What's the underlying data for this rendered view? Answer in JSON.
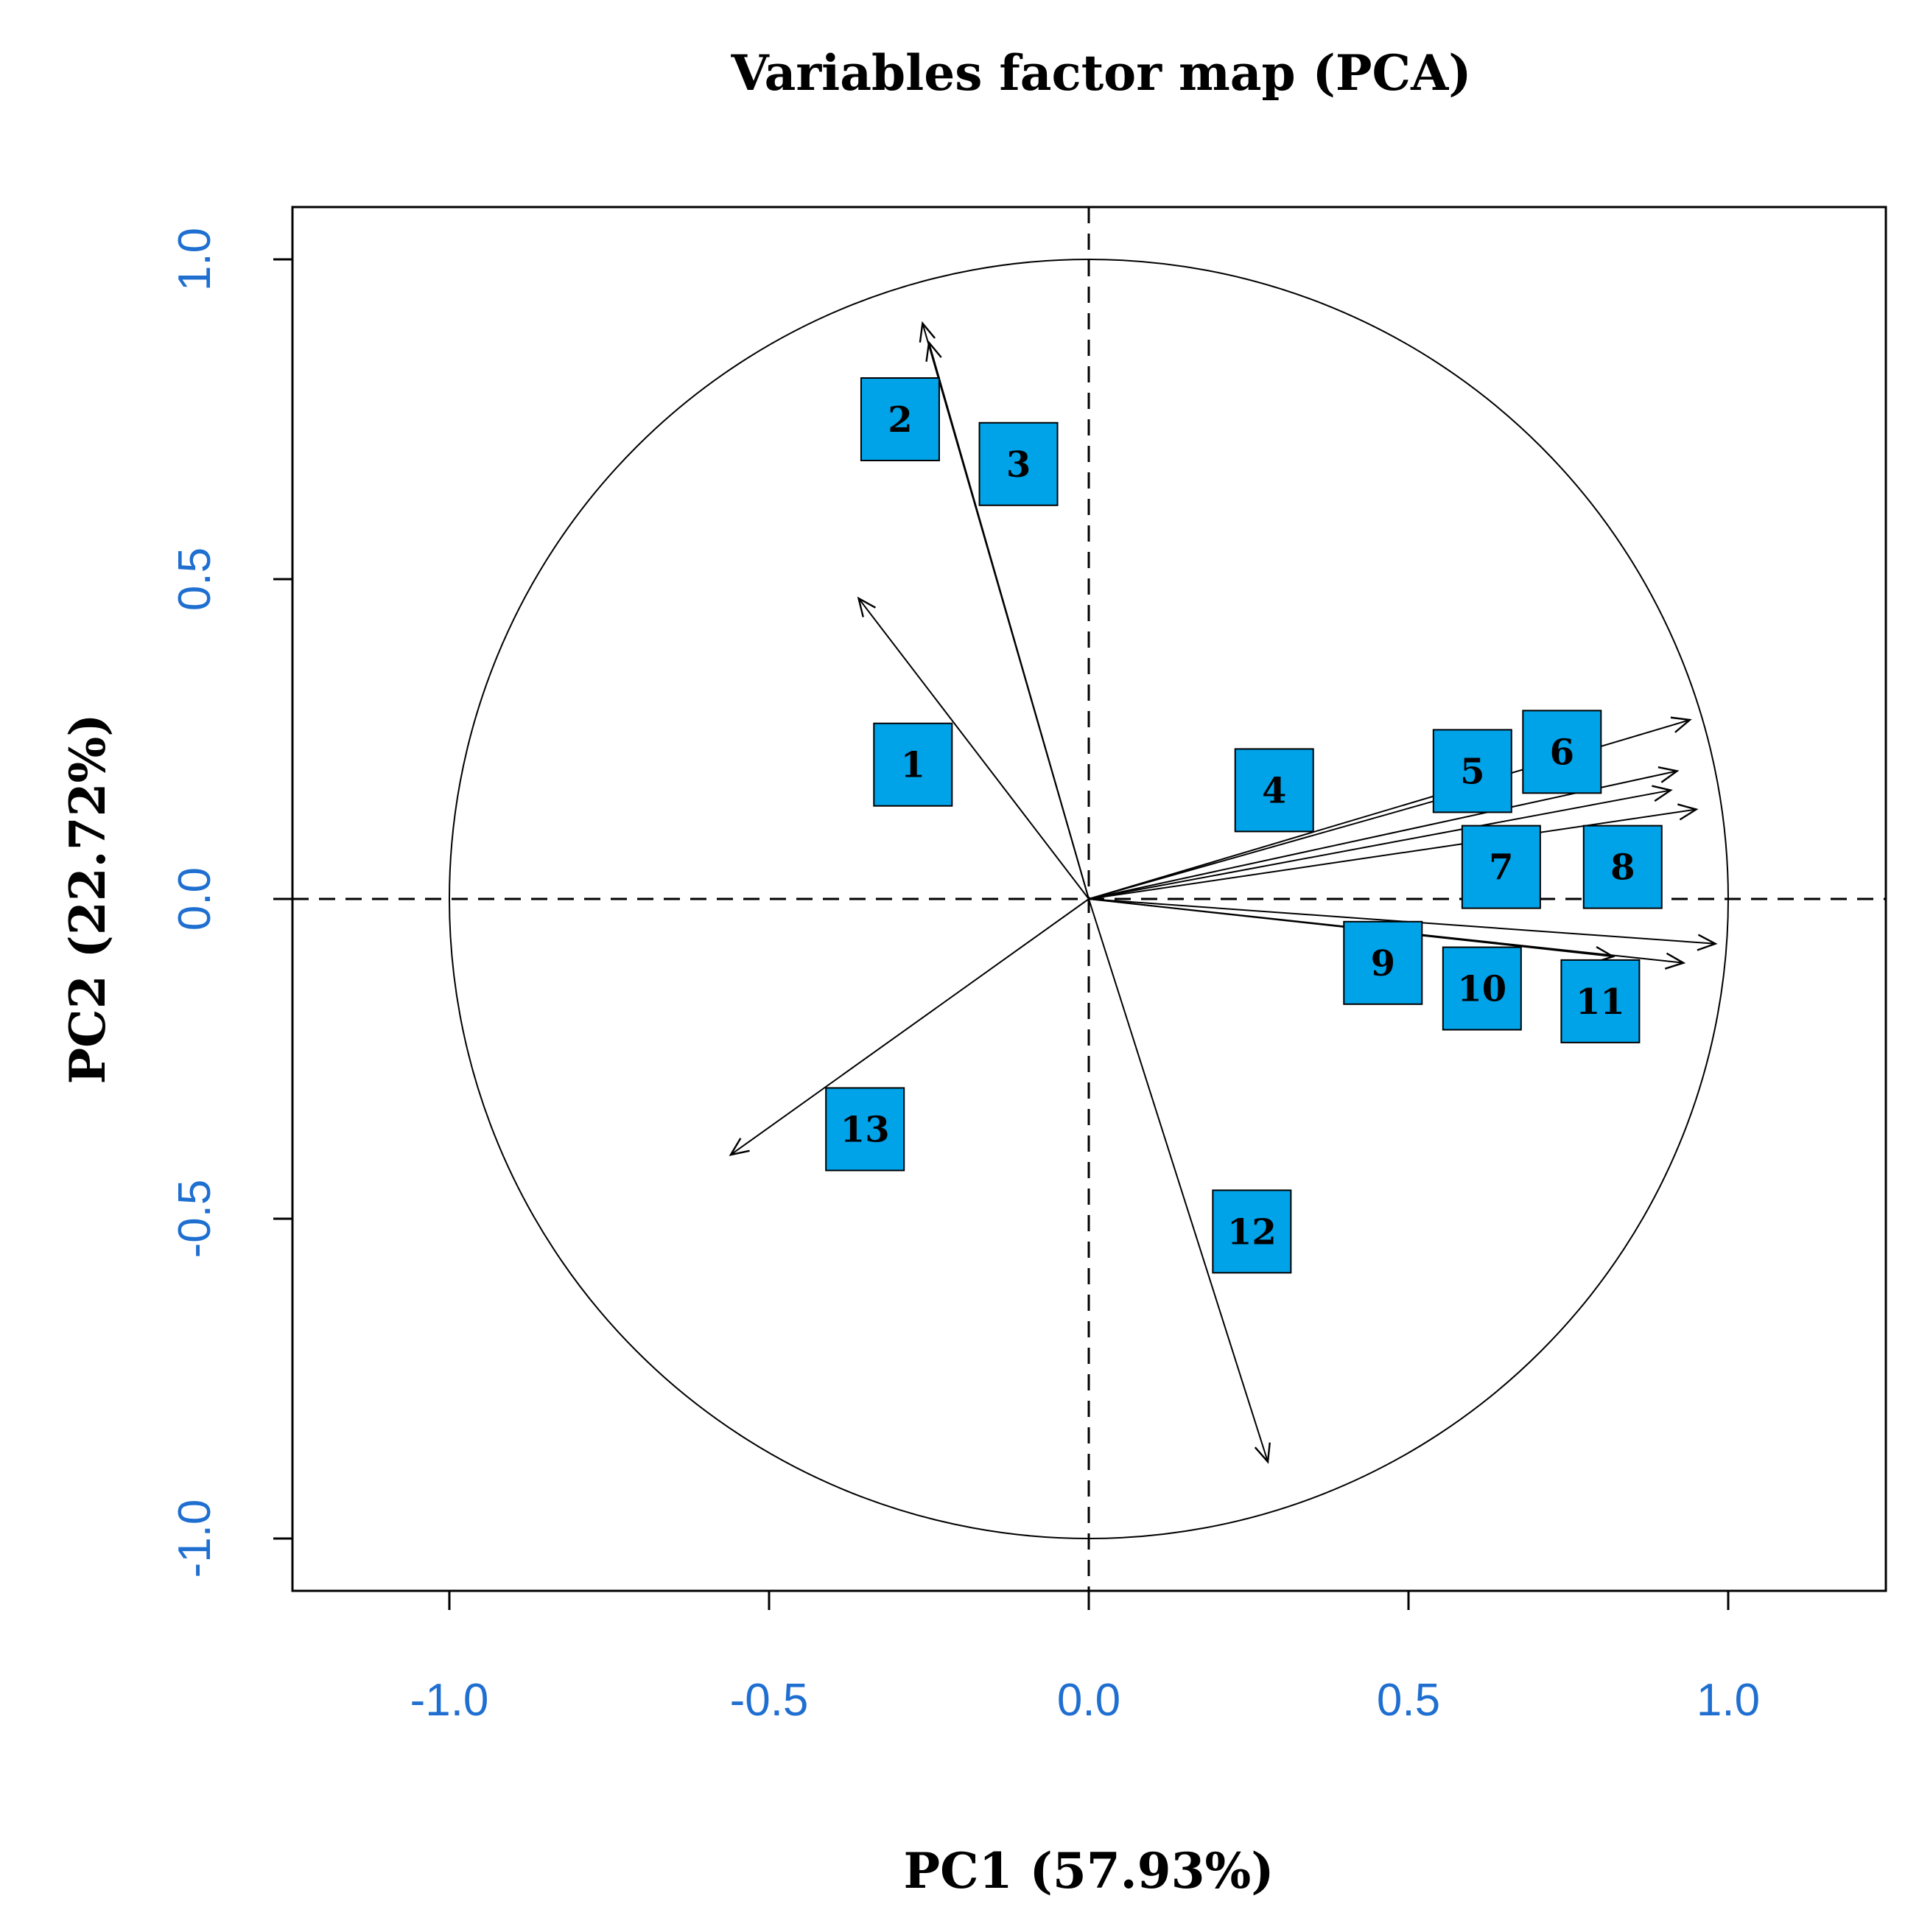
{
  "chart_data": {
    "type": "scatter",
    "subtype": "pca-correlation-circle",
    "title": "Variables factor map (PCA)",
    "xlabel": "PC1 (57.93%)",
    "ylabel": "PC2 (22.72%)",
    "xlim": [
      -1.25,
      1.25
    ],
    "ylim": [
      -1.08,
      1.08
    ],
    "xticks": [
      -1.0,
      -0.5,
      0.0,
      0.5,
      1.0
    ],
    "yticks": [
      -1.0,
      -0.5,
      0.0,
      0.5,
      1.0
    ],
    "xtick_labels": [
      "-1.0",
      "-0.5",
      "0.0",
      "0.5",
      "1.0"
    ],
    "ytick_labels": [
      "-1.0",
      "-0.5",
      "0.0",
      "0.5",
      "1.0"
    ],
    "tick_label_color": "#1f6fd1",
    "box_color": "#00a2e8",
    "circle_radius": 1.0,
    "reference_lines": "dashed at x=0 and y=0",
    "variables": [
      {
        "label": "1",
        "x": -0.36,
        "y": 0.47,
        "label_x": -0.275,
        "label_y": 0.21
      },
      {
        "label": "2",
        "x": -0.26,
        "y": 0.9,
        "label_x": -0.295,
        "label_y": 0.75
      },
      {
        "label": "3",
        "x": -0.25,
        "y": 0.87,
        "label_x": -0.11,
        "label_y": 0.68
      },
      {
        "label": "4",
        "x": 0.6,
        "y": 0.17,
        "label_x": 0.29,
        "label_y": 0.17
      },
      {
        "label": "5",
        "x": 0.92,
        "y": 0.2,
        "label_x": 0.6,
        "label_y": 0.2
      },
      {
        "label": "6",
        "x": 0.94,
        "y": 0.28,
        "label_x": 0.74,
        "label_y": 0.23
      },
      {
        "label": "7",
        "x": 0.91,
        "y": 0.17,
        "label_x": 0.645,
        "label_y": 0.05
      },
      {
        "label": "8",
        "x": 0.95,
        "y": 0.14,
        "label_x": 0.835,
        "label_y": 0.05
      },
      {
        "label": "9",
        "x": 0.82,
        "y": -0.09,
        "label_x": 0.46,
        "label_y": -0.1
      },
      {
        "label": "10",
        "x": 0.93,
        "y": -0.1,
        "label_x": 0.615,
        "label_y": -0.14
      },
      {
        "label": "11",
        "x": 0.98,
        "y": -0.07,
        "label_x": 0.8,
        "label_y": -0.16
      },
      {
        "label": "12",
        "x": 0.28,
        "y": -0.88,
        "label_x": 0.255,
        "label_y": -0.52
      },
      {
        "label": "13",
        "x": -0.56,
        "y": -0.4,
        "label_x": -0.35,
        "label_y": -0.36
      }
    ]
  }
}
